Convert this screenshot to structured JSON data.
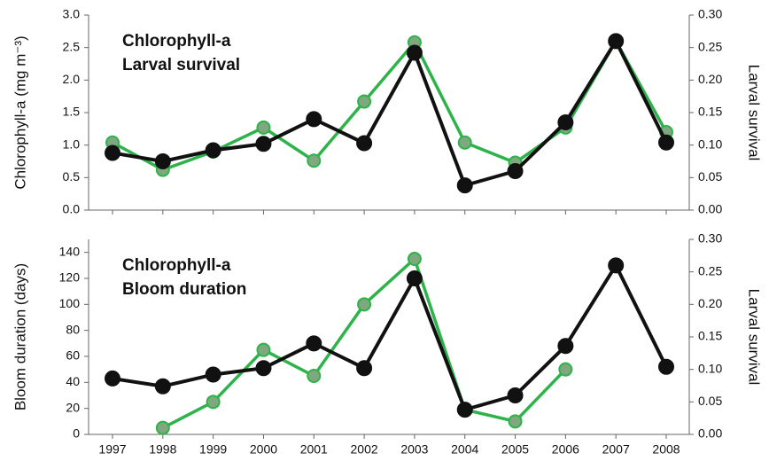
{
  "chart_data": [
    {
      "type": "line",
      "y_label": "Chlorophyll-a (mg m⁻³)",
      "y2_label": "Larval survival",
      "ylim": [
        0,
        3
      ],
      "yticks": [
        {
          "value": 0,
          "label": "0.0"
        },
        0.5,
        {
          "value": 1,
          "label": "1.0"
        },
        1.5,
        {
          "value": 2,
          "label": "2.0"
        },
        2.5,
        {
          "value": 3,
          "label": "3.0"
        }
      ],
      "y2lim": [
        0,
        0.3
      ],
      "y2ticks": [
        {
          "value": 0,
          "label": "0.00"
        },
        {
          "value": 0.05,
          "label": "0.05"
        },
        {
          "value": 0.1,
          "label": "0.10"
        },
        {
          "value": 0.15,
          "label": "0.15"
        },
        {
          "value": 0.2,
          "label": "0.20"
        },
        {
          "value": 0.25,
          "label": "0.25"
        },
        {
          "value": 0.3,
          "label": "0.30"
        }
      ],
      "series": [
        {
          "name": "Larval survival",
          "color": "#2db34a",
          "axis": "y2",
          "values": [
            0.104,
            0.062,
            0.09,
            0.127,
            0.076,
            0.167,
            0.258,
            0.104,
            0.073,
            0.127,
            0.26,
            0.12
          ]
        },
        {
          "name": "Chlorophyll-a",
          "color": "#111111",
          "values": [
            0.88,
            0.75,
            0.92,
            1.02,
            1.4,
            1.03,
            2.42,
            0.38,
            0.6,
            1.35,
            2.6,
            1.04
          ]
        }
      ]
    },
    {
      "type": "line",
      "y_label": "Bloom duration (days)",
      "y2_label": "Larval survival",
      "categories": [
        "1997",
        "1998",
        "1999",
        "2000",
        "2001",
        "2002",
        "2003",
        "2004",
        "2005",
        "2006",
        "2007",
        "2008"
      ],
      "ylim": [
        0,
        150
      ],
      "yticks": [
        0,
        20,
        40,
        60,
        80,
        100,
        120,
        140
      ],
      "y2lim": [
        0,
        0.3
      ],
      "y2ticks": [
        {
          "value": 0,
          "label": "0.00"
        },
        {
          "value": 0.05,
          "label": "0.05"
        },
        {
          "value": 0.1,
          "label": "0.10"
        },
        {
          "value": 0.15,
          "label": "0.15"
        },
        {
          "value": 0.2,
          "label": "0.20"
        },
        {
          "value": 0.25,
          "label": "0.25"
        },
        {
          "value": 0.3,
          "label": "0.30"
        }
      ],
      "series": [
        {
          "name": "Bloom duration",
          "color": "#2db34a",
          "values": [
            null,
            5,
            25,
            65,
            45,
            100,
            135,
            19,
            10,
            50,
            null,
            null
          ]
        },
        {
          "name": "Chlorophyll-a",
          "color": "#111111",
          "values": [
            43,
            37,
            46,
            51,
            70,
            51,
            120,
            19,
            30,
            68,
            130,
            52
          ]
        }
      ]
    }
  ]
}
